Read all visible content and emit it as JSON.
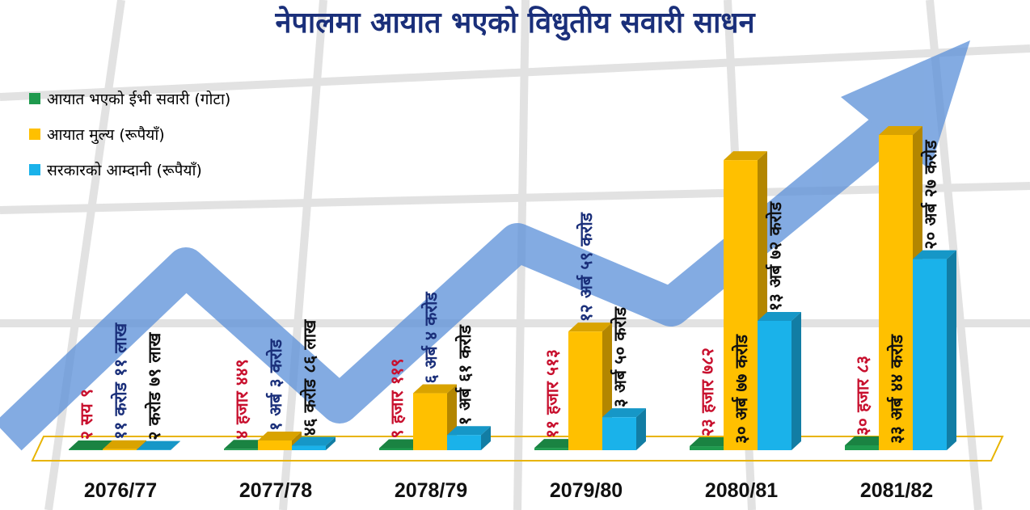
{
  "chart_data": {
    "type": "bar3d",
    "title": "नेपालमा आयात भएको विधुतीय सवारी साधन",
    "categories": [
      "2076/77",
      "2077/78",
      "2078/79",
      "2079/80",
      "2080/81",
      "2081/82"
    ],
    "series": [
      {
        "name": "आयात भएको ईभी सवारी (गोटा)",
        "color": "#1f9a4e",
        "values": [
          209,
          4449,
          9119,
          11513,
          23782,
          30083
        ],
        "value_labels": [
          "२ सय ९",
          "४ हजार ४४९",
          "९ हजार ११९",
          "११ हजार ५१३",
          "२३ हजार ७८२",
          "३० हजार ८३"
        ]
      },
      {
        "name": "आयात मुल्य (रूपैयाँ)",
        "color": "#ffc000",
        "values": [
          111100000,
          1030000000,
          6040000000,
          12590000000,
          30770000000,
          33440000000
        ],
        "value_labels": [
          "११ करोड ११ लाख",
          "१ अर्ब ३ करोड",
          "६ अर्ब ४ करोड",
          "१२ अर्ब ५९ करोड",
          "३० अर्ब ७७ करोड",
          "३३ अर्ब ४४ करोड"
        ]
      },
      {
        "name": "सरकारको आम्दानी (रूपैयाँ)",
        "color": "#1ab2ea",
        "values": [
          27900000,
          468600000,
          1610000000,
          3500000000,
          13720000000,
          20270000000
        ],
        "value_labels": [
          "२ करोड ७९ लाख",
          "४६ करोड ८६ लाख",
          "१ अर्ब ६१ करोड",
          "३ अर्ब ५० करोड",
          "१३ अर्ब ७२ करोड",
          "२० अर्ब २७ करोड"
        ]
      }
    ]
  }
}
